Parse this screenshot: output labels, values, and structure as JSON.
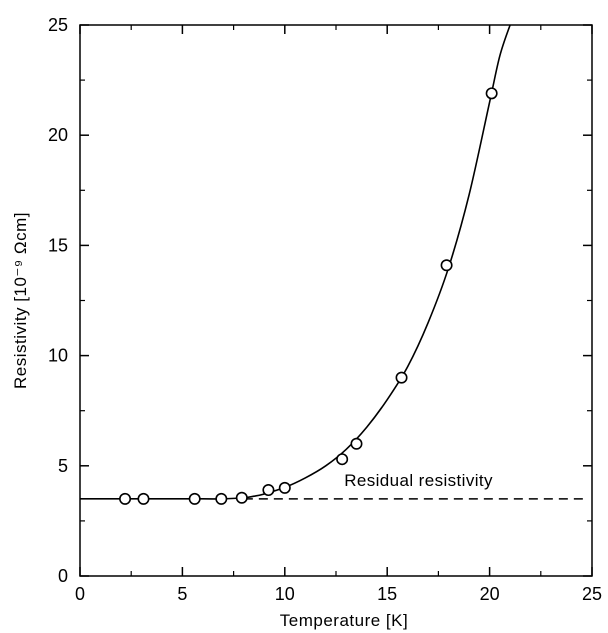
{
  "chart_data": {
    "type": "scatter",
    "xlabel": "Temperature [K]",
    "ylabel": "Resistivity [10⁻⁹ Ωcm]",
    "xlim": [
      0,
      25
    ],
    "ylim": [
      0,
      25
    ],
    "xticks": [
      0,
      5,
      10,
      15,
      20,
      25
    ],
    "yticks": [
      0,
      5,
      10,
      15,
      20,
      25
    ],
    "xtick_labels": [
      "0",
      "5",
      "10",
      "15",
      "20",
      "25"
    ],
    "ytick_labels": [
      "0",
      "5",
      "10",
      "15",
      "20",
      "25"
    ],
    "grid": false,
    "series": [
      {
        "marker": "open-circle",
        "x": [
          2.2,
          3.1,
          5.6,
          6.9,
          7.9,
          9.2,
          10.0,
          12.8,
          13.5,
          15.7,
          17.9,
          20.1
        ],
        "y": [
          3.5,
          3.5,
          3.5,
          3.5,
          3.55,
          3.9,
          4.0,
          5.3,
          6.0,
          9.0,
          14.1,
          21.9
        ]
      }
    ],
    "fit_curve": {
      "style": "solid",
      "x": [
        0,
        2,
        4,
        6,
        7,
        8,
        8.5,
        9,
        10,
        11,
        12,
        13,
        14,
        15,
        16,
        17,
        18,
        19,
        20,
        20.5,
        21.0
      ],
      "y": [
        3.5,
        3.5,
        3.5,
        3.5,
        3.5,
        3.55,
        3.62,
        3.72,
        4.02,
        4.45,
        5.0,
        5.75,
        6.75,
        8.0,
        9.5,
        11.5,
        14.0,
        17.3,
        21.5,
        23.6,
        25.0
      ]
    },
    "reference_line": {
      "style": "dashed",
      "y": 3.5,
      "x_from": 8,
      "x_to": 24.8,
      "label": "Residual resistivity"
    },
    "colors": {
      "line": "#000000",
      "marker_fill": "#ffffff",
      "background": "#ffffff"
    }
  }
}
